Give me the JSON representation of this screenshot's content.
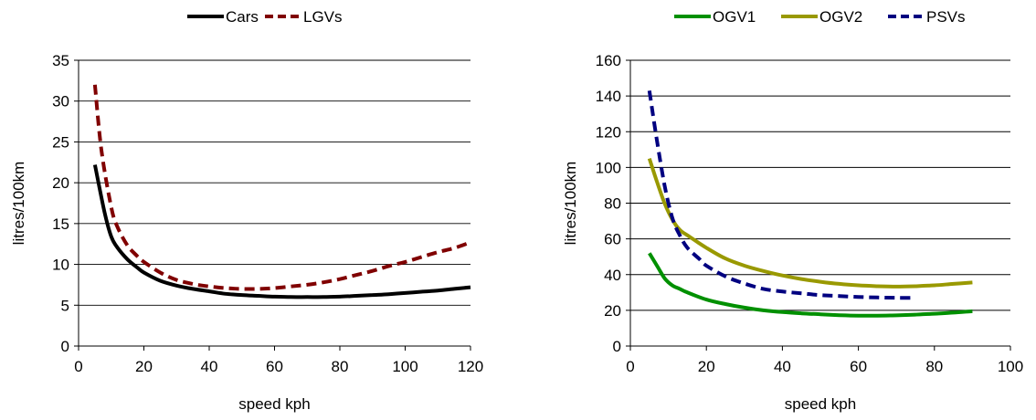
{
  "chart_data": [
    {
      "type": "line",
      "xlabel": "speed kph",
      "ylabel": "litres/100km",
      "xlim": [
        0,
        120
      ],
      "ylim": [
        0,
        35
      ],
      "xticks": [
        0,
        20,
        40,
        60,
        80,
        100,
        120
      ],
      "yticks": [
        0,
        5,
        10,
        15,
        20,
        25,
        30,
        35
      ],
      "grid": "horizontal",
      "legend_position": "top",
      "series": [
        {
          "name": "Cars",
          "color": "#000000",
          "dash": "solid",
          "x": [
            5,
            8,
            10,
            12,
            15,
            18,
            20,
            25,
            30,
            35,
            40,
            45,
            50,
            55,
            60,
            65,
            70,
            75,
            80,
            85,
            90,
            95,
            100,
            105,
            110,
            115,
            120
          ],
          "y": [
            22.2,
            16.3,
            13.4,
            12.0,
            10.6,
            9.6,
            9.0,
            8.0,
            7.4,
            7.0,
            6.7,
            6.4,
            6.25,
            6.15,
            6.05,
            6.0,
            6.0,
            6.0,
            6.05,
            6.15,
            6.25,
            6.35,
            6.5,
            6.65,
            6.8,
            7.0,
            7.2
          ]
        },
        {
          "name": "LGVs",
          "color": "#800000",
          "dash": "dashed",
          "x": [
            5,
            7,
            10,
            12,
            15,
            18,
            20,
            25,
            30,
            35,
            40,
            45,
            50,
            55,
            60,
            65,
            70,
            75,
            80,
            85,
            90,
            95,
            100,
            105,
            110,
            115,
            120
          ],
          "y": [
            32.0,
            24.0,
            17.0,
            14.5,
            12.3,
            11.0,
            10.3,
            9.0,
            8.1,
            7.6,
            7.3,
            7.1,
            7.0,
            7.0,
            7.1,
            7.3,
            7.5,
            7.8,
            8.2,
            8.7,
            9.2,
            9.8,
            10.3,
            10.9,
            11.5,
            12.0,
            12.7
          ]
        }
      ]
    },
    {
      "type": "line",
      "xlabel": "speed kph",
      "ylabel": "litres/100km",
      "xlim": [
        0,
        100
      ],
      "ylim": [
        0,
        160
      ],
      "xticks": [
        0,
        20,
        40,
        60,
        80,
        100
      ],
      "yticks": [
        0,
        20,
        40,
        60,
        80,
        100,
        120,
        140,
        160
      ],
      "grid": "horizontal",
      "legend_position": "top",
      "series": [
        {
          "name": "OGV1",
          "color": "#009000",
          "dash": "solid",
          "x": [
            5,
            7,
            9,
            11,
            13,
            15,
            20,
            25,
            30,
            35,
            40,
            45,
            50,
            55,
            60,
            65,
            70,
            75,
            80,
            85,
            90
          ],
          "y": [
            52,
            45,
            38,
            34,
            32,
            30,
            26,
            23.5,
            21.5,
            20,
            19,
            18.3,
            17.8,
            17.3,
            17,
            17,
            17.2,
            17.6,
            18.1,
            18.7,
            19.5
          ]
        },
        {
          "name": "OGV2",
          "color": "#999900",
          "dash": "solid",
          "x": [
            5,
            7,
            9,
            11,
            13,
            15,
            20,
            25,
            30,
            35,
            40,
            45,
            50,
            55,
            60,
            65,
            70,
            75,
            80,
            85,
            90
          ],
          "y": [
            105,
            92,
            80,
            71,
            65,
            62,
            55,
            49,
            45,
            42,
            39.5,
            37.5,
            36,
            34.8,
            34,
            33.5,
            33.3,
            33.5,
            34,
            34.8,
            35.6
          ]
        },
        {
          "name": "PSVs",
          "color": "#000080",
          "dash": "dashed",
          "x": [
            5,
            7,
            9,
            11,
            13,
            15,
            18,
            20,
            25,
            30,
            35,
            40,
            45,
            50,
            55,
            60,
            65,
            70,
            75
          ],
          "y": [
            143,
            115,
            90,
            72,
            62,
            55,
            49,
            45,
            39,
            35,
            32,
            30.5,
            29.5,
            28.5,
            28,
            27.5,
            27.2,
            27,
            27
          ]
        }
      ]
    }
  ]
}
